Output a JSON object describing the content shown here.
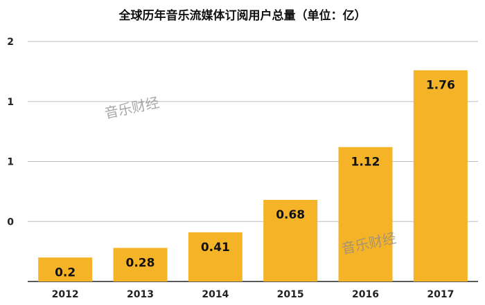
{
  "chart_data": {
    "type": "bar",
    "title": "全球历年音乐流媒体订阅用户总量（单位：亿）",
    "categories": [
      "2012",
      "2013",
      "2014",
      "2015",
      "2016",
      "2017"
    ],
    "values": [
      0.2,
      0.28,
      0.41,
      0.68,
      1.12,
      1.76
    ],
    "data_labels": [
      "0.2",
      "0.28",
      "0.41",
      "0.68",
      "1.12",
      "1.76"
    ],
    "y_tick_labels": [
      "0",
      "1",
      "1",
      "2"
    ],
    "ylim": [
      0,
      2
    ],
    "xlabel": "",
    "ylabel": "",
    "grid": true,
    "legend": "none",
    "bar_color": "#F5B428"
  },
  "watermark": "音乐财经"
}
